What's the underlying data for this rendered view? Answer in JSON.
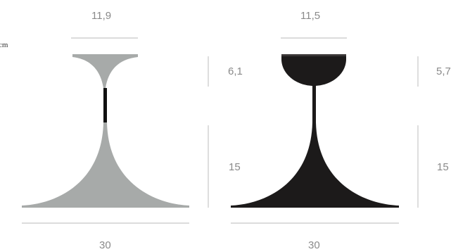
{
  "unit": "cm",
  "colors": {
    "dimension_line": "#c8c8c8",
    "dimension_text": "#8a8a8a",
    "grey_lamp": "#a7aaa9",
    "black_lamp": "#1c1a1a",
    "black_cap_rim": "#3a3636"
  },
  "lamps": [
    {
      "name": "grey-lamp",
      "top_width": "11,9",
      "top_height": "6,1",
      "bottom_height": "15",
      "base_width": "30"
    },
    {
      "name": "black-lamp",
      "top_width": "11,5",
      "top_height": "5,7",
      "bottom_height": "15",
      "base_width": "30"
    }
  ]
}
